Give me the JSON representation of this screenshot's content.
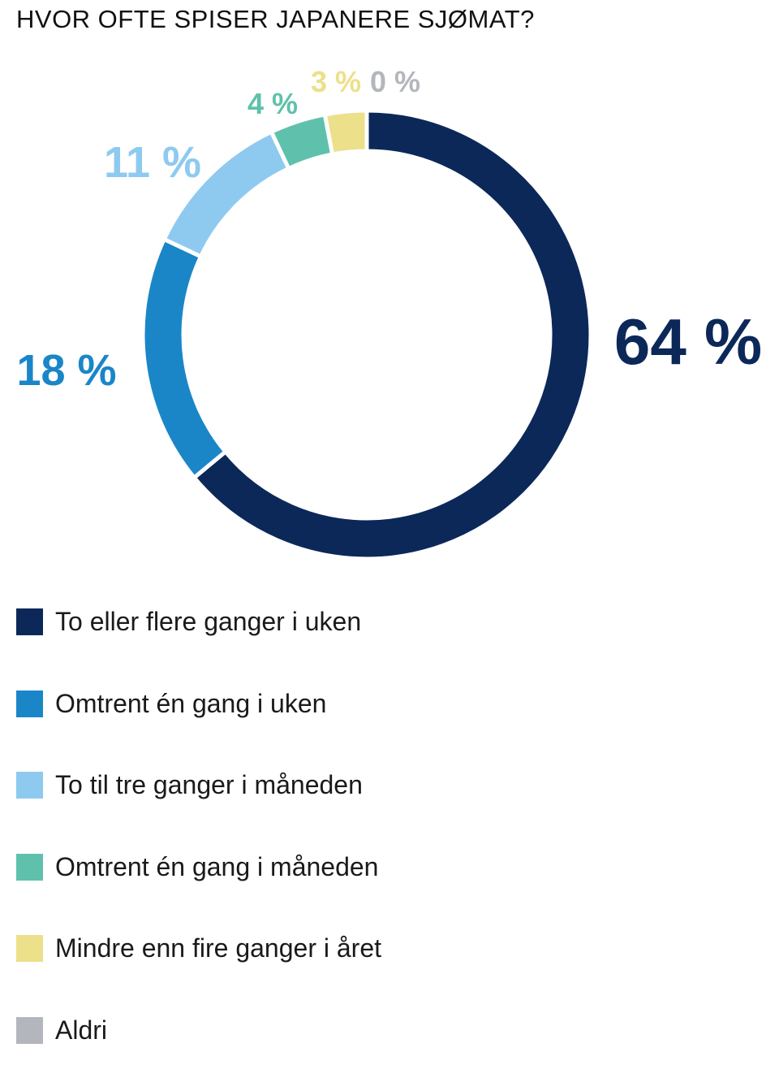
{
  "title": "HVOR OFTE SPISER JAPANERE SJØMAT?",
  "chart_data": {
    "type": "pie",
    "variant": "donut",
    "title": "HVOR OFTE SPISER JAPANERE SJØMAT?",
    "unit": "%",
    "slices": [
      {
        "name": "To eller flere ganger i uken",
        "value": 64,
        "label": "64 %",
        "color": "#0b2859"
      },
      {
        "name": "Omtrent én gang i uken",
        "value": 18,
        "label": "18 %",
        "color": "#1a86c8"
      },
      {
        "name": "To til tre ganger i måneden",
        "value": 11,
        "label": "11 %",
        "color": "#8ecaf0"
      },
      {
        "name": "Omtrent én gang i måneden",
        "value": 4,
        "label": "4 %",
        "color": "#5fc1ab"
      },
      {
        "name": "Mindre enn fire ganger i året",
        "value": 3,
        "label": "3 %",
        "color": "#ece08a"
      },
      {
        "name": "Aldri",
        "value": 0,
        "label": "0 %",
        "color": "#b4b6bd"
      }
    ],
    "legend_position": "bottom"
  }
}
